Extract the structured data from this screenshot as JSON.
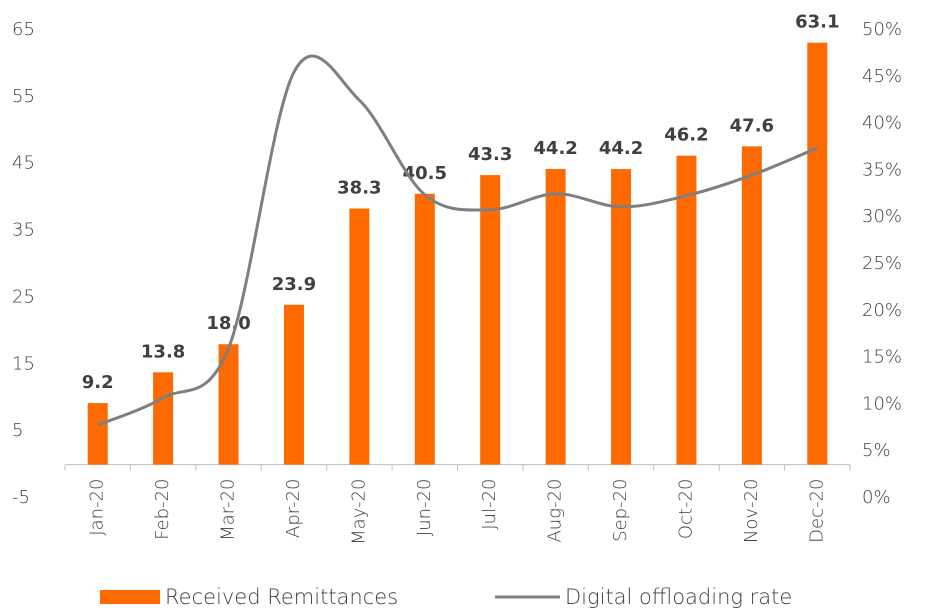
{
  "chart_data": {
    "type": "bar-line",
    "categories": [
      "Jan-20",
      "Feb-20",
      "Mar-20",
      "Apr-20",
      "May-20",
      "Jun-20",
      "Jul-20",
      "Aug-20",
      "Sep-20",
      "Oct-20",
      "Nov-20",
      "Dec-20"
    ],
    "series": [
      {
        "name": "Received Remittances",
        "type": "bar",
        "color": "#ff6a00",
        "axis": "y",
        "values": [
          9.2,
          13.8,
          18.0,
          23.9,
          38.3,
          40.5,
          43.3,
          44.2,
          44.2,
          46.2,
          47.6,
          63.1
        ],
        "value_labels": [
          "9.2",
          "13.8",
          "18.0",
          "23.9",
          "38.3",
          "40.5",
          "43.3",
          "44.2",
          "44.2",
          "46.2",
          "47.6",
          "63.1"
        ]
      },
      {
        "name": "Digital offloading rate",
        "type": "line",
        "color": "#7f7f7f",
        "axis": "y2",
        "values": [
          7.8,
          10.7,
          16.0,
          45.5,
          42.5,
          32.4,
          30.8,
          32.5,
          31.1,
          32.3,
          34.5,
          37.4
        ]
      }
    ],
    "ylim": [
      -5,
      65
    ],
    "yticks": [
      -5,
      5,
      15,
      25,
      35,
      45,
      55,
      65
    ],
    "y2lim": [
      0,
      50
    ],
    "y2ticks": [
      {
        "value": 0,
        "label": "0%"
      },
      {
        "value": 5,
        "label": "5%"
      },
      {
        "value": 10,
        "label": "10%"
      },
      {
        "value": 15,
        "label": "15%"
      },
      {
        "value": 20,
        "label": "20%"
      },
      {
        "value": 25,
        "label": "25%"
      },
      {
        "value": 30,
        "label": "30%"
      },
      {
        "value": 35,
        "label": "35%"
      },
      {
        "value": 40,
        "label": "40%"
      },
      {
        "value": 45,
        "label": "45%"
      },
      {
        "value": 50,
        "label": "50%"
      }
    ],
    "grid": false,
    "legend": "bottom"
  }
}
